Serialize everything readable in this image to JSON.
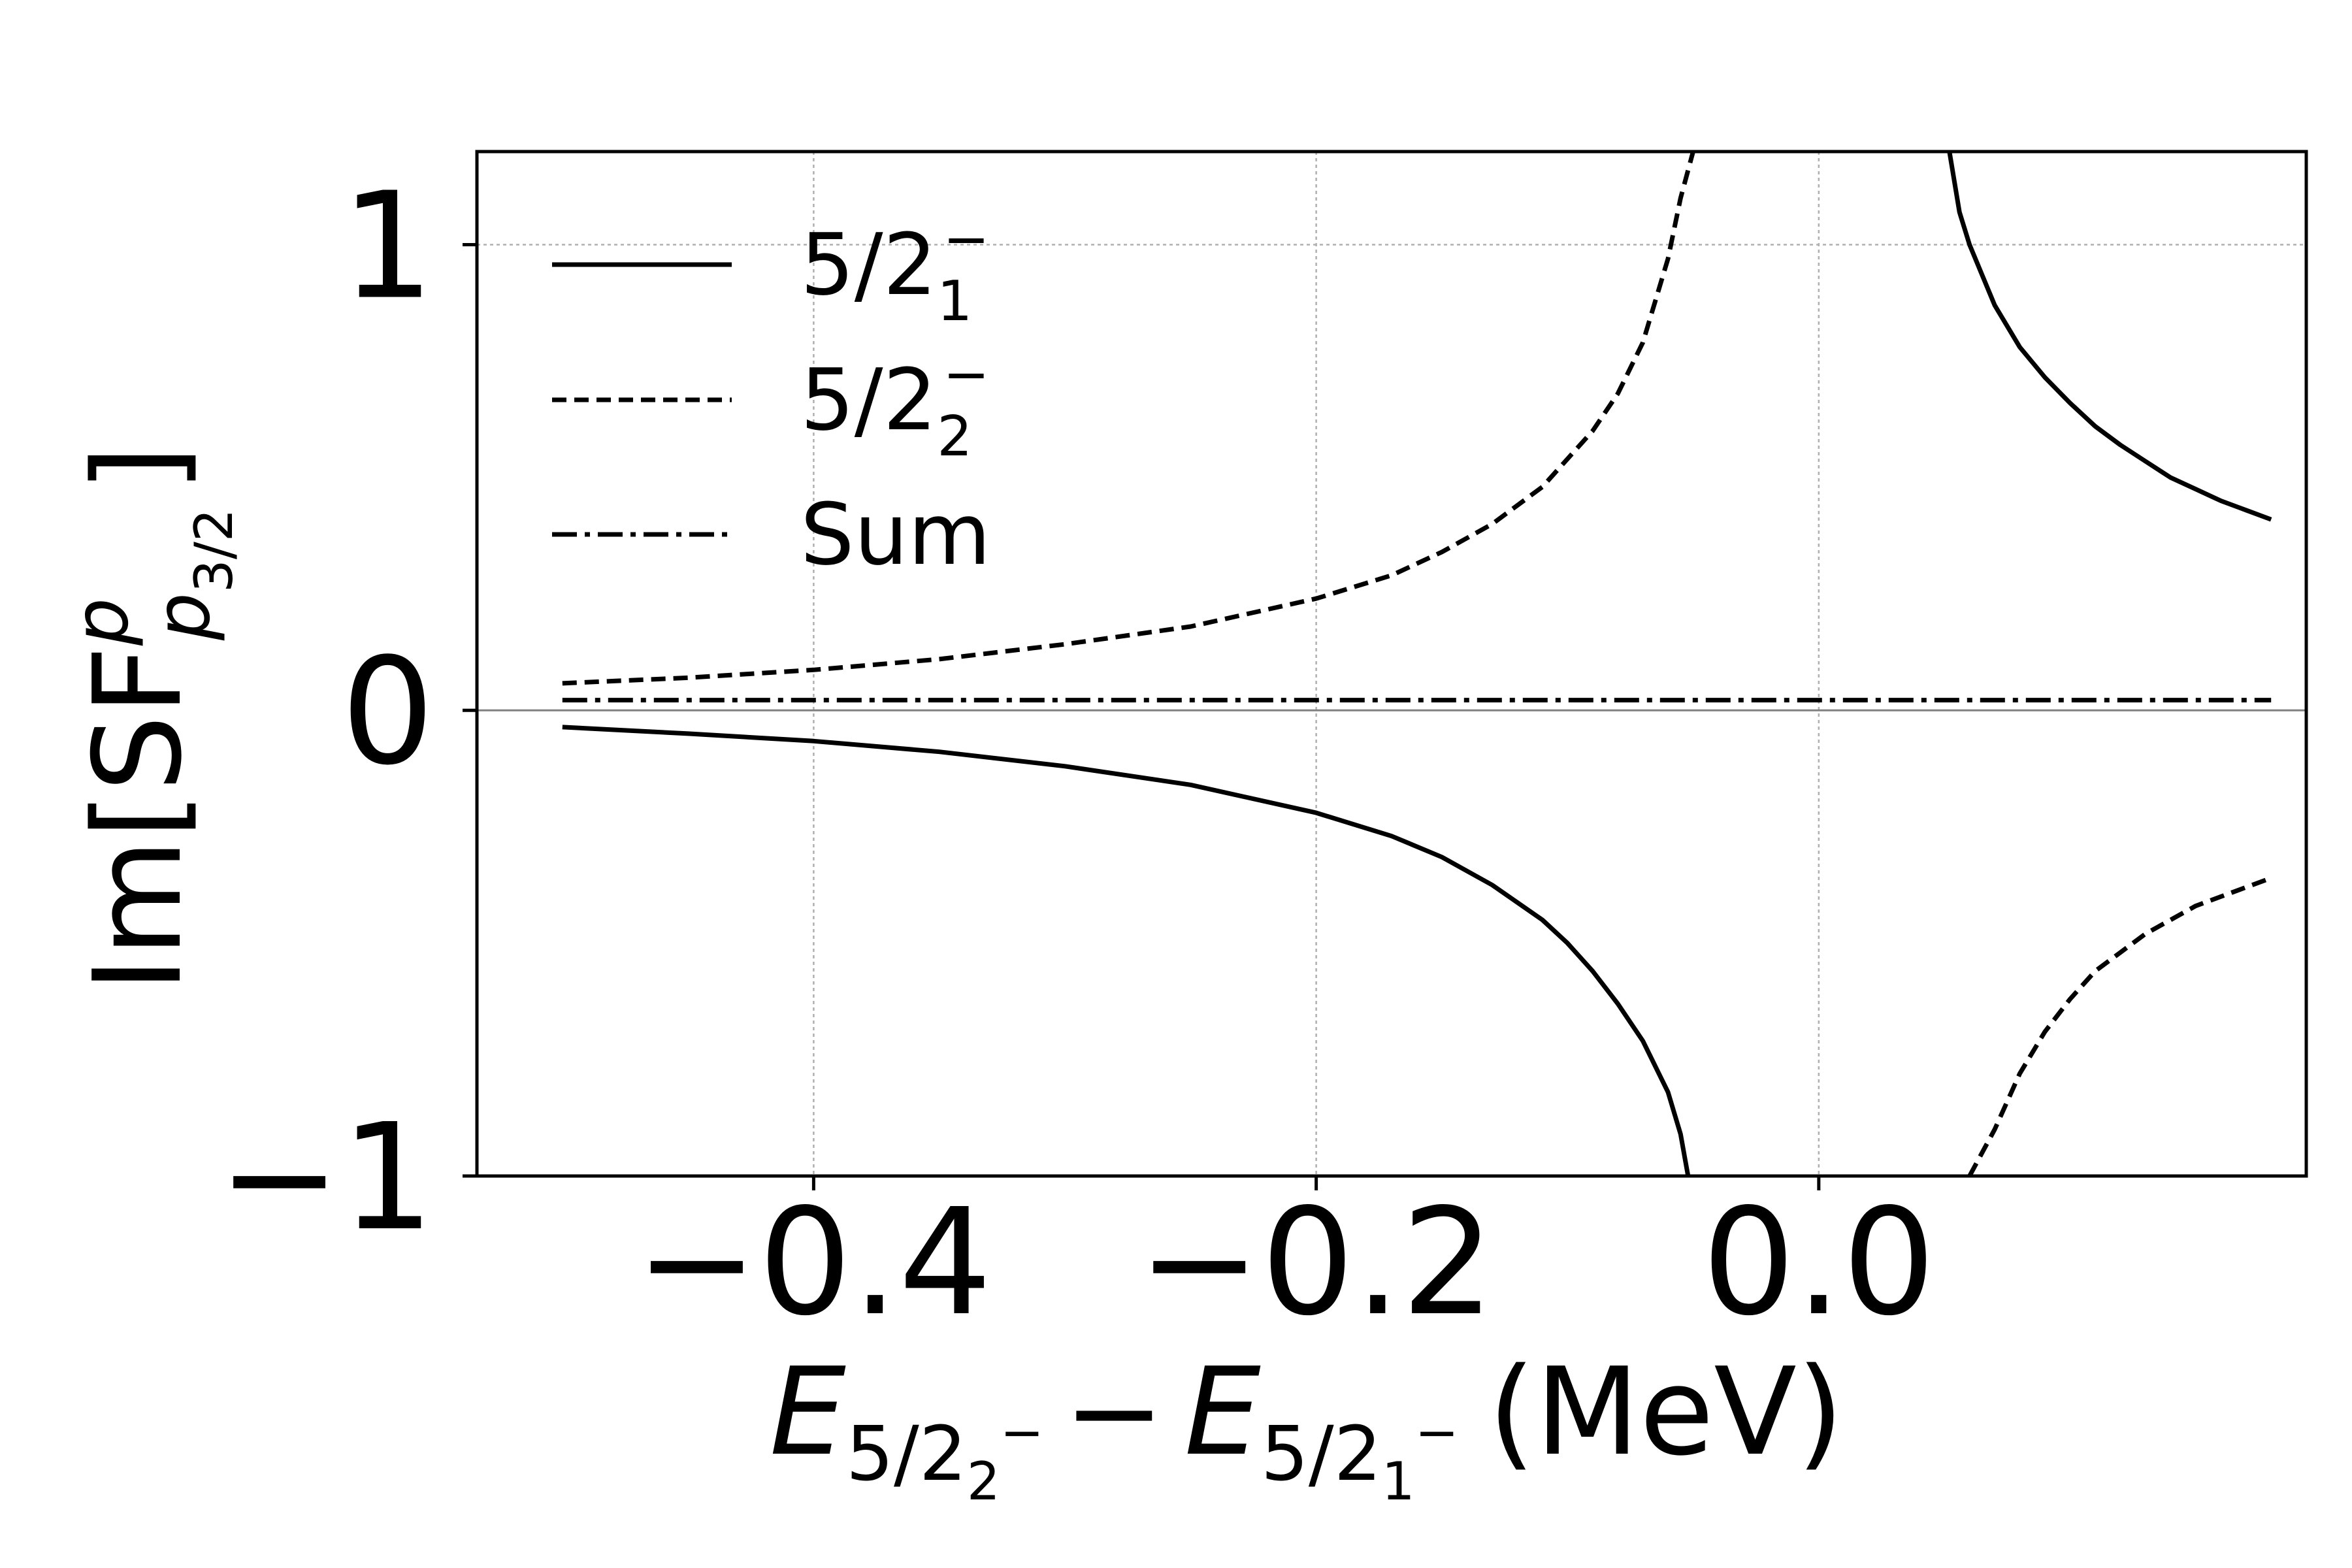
{
  "chart_data": {
    "type": "line",
    "xlabel": {
      "E": "E",
      "sub1_main": "5/2",
      "sub1_sub": "2",
      "sub1_sup": "−",
      "minus": "−",
      "E2": "E",
      "sub2_main": "5/2",
      "sub2_sub": "1",
      "sub2_sup": "−",
      "unit": "(MeV)"
    },
    "ylabel": {
      "pre": "Im[SF",
      "sup": "p",
      "sub_main": "p",
      "sub_sub": "3/2",
      "post": "]"
    },
    "xlim": [
      -0.534,
      0.194
    ],
    "ylim": [
      -1.0,
      1.2
    ],
    "x_ticks": [
      {
        "value": -0.4,
        "label": "−0.4"
      },
      {
        "value": -0.2,
        "label": "−0.2"
      },
      {
        "value": 0.0,
        "label": "0.0"
      }
    ],
    "y_ticks": [
      {
        "value": -1,
        "label": "−1"
      },
      {
        "value": 0,
        "label": "0"
      },
      {
        "value": 1,
        "label": "1"
      }
    ],
    "grid": true,
    "zero_line": true,
    "legend": {
      "position": "upper-left",
      "entries": [
        {
          "main": "5/2",
          "sub": "1",
          "sup": "−",
          "style": "solid"
        },
        {
          "main": "5/2",
          "sub": "2",
          "sup": "−",
          "style": "dashed"
        },
        {
          "main": "Sum",
          "sub": "",
          "sup": "",
          "style": "dashdot"
        }
      ]
    },
    "series": [
      {
        "style": "solid",
        "segments": [
          [
            [
              -0.5,
              -0.036
            ],
            [
              -0.45,
              -0.05
            ],
            [
              -0.4,
              -0.066
            ],
            [
              -0.35,
              -0.089
            ],
            [
              -0.3,
              -0.12
            ],
            [
              -0.25,
              -0.16
            ],
            [
              -0.2,
              -0.22
            ],
            [
              -0.17,
              -0.27
            ],
            [
              -0.15,
              -0.315
            ],
            [
              -0.13,
              -0.375
            ],
            [
              -0.11,
              -0.45
            ],
            [
              -0.1,
              -0.5
            ],
            [
              -0.09,
              -0.56
            ],
            [
              -0.08,
              -0.63
            ],
            [
              -0.07,
              -0.71
            ],
            [
              -0.06,
              -0.82
            ],
            [
              -0.055,
              -0.91
            ],
            [
              -0.052,
              -1.0
            ]
          ],
          [
            [
              0.052,
              1.2
            ],
            [
              0.056,
              1.07
            ],
            [
              0.06,
              1.0
            ],
            [
              0.07,
              0.87
            ],
            [
              0.08,
              0.78
            ],
            [
              0.09,
              0.715
            ],
            [
              0.1,
              0.66
            ],
            [
              0.11,
              0.61
            ],
            [
              0.12,
              0.57
            ],
            [
              0.13,
              0.535
            ],
            [
              0.14,
              0.5
            ],
            [
              0.15,
              0.475
            ],
            [
              0.16,
              0.45
            ],
            [
              0.17,
              0.43
            ],
            [
              0.18,
              0.41
            ]
          ]
        ]
      },
      {
        "style": "dashed",
        "segments": [
          [
            [
              -0.5,
              0.058
            ],
            [
              -0.45,
              0.07
            ],
            [
              -0.4,
              0.087
            ],
            [
              -0.35,
              0.11
            ],
            [
              -0.3,
              0.142
            ],
            [
              -0.25,
              0.18
            ],
            [
              -0.2,
              0.24
            ],
            [
              -0.17,
              0.29
            ],
            [
              -0.15,
              0.34
            ],
            [
              -0.13,
              0.4
            ],
            [
              -0.11,
              0.48
            ],
            [
              -0.1,
              0.54
            ],
            [
              -0.09,
              0.6
            ],
            [
              -0.08,
              0.68
            ],
            [
              -0.07,
              0.79
            ],
            [
              -0.06,
              0.97
            ],
            [
              -0.055,
              1.1
            ],
            [
              -0.05,
              1.2
            ]
          ],
          [
            [
              0.06,
              -1.0
            ],
            [
              0.07,
              -0.9
            ],
            [
              0.08,
              -0.78
            ],
            [
              0.09,
              -0.69
            ],
            [
              0.1,
              -0.62
            ],
            [
              0.11,
              -0.56
            ],
            [
              0.12,
              -0.52
            ],
            [
              0.13,
              -0.48
            ],
            [
              0.14,
              -0.45
            ],
            [
              0.15,
              -0.42
            ],
            [
              0.16,
              -0.4
            ],
            [
              0.17,
              -0.38
            ],
            [
              0.18,
              -0.36
            ]
          ]
        ]
      },
      {
        "style": "dashdot",
        "segments": [
          [
            [
              -0.5,
              0.022
            ],
            [
              -0.3,
              0.022
            ],
            [
              -0.1,
              0.022
            ],
            [
              0.1,
              0.022
            ],
            [
              0.18,
              0.022
            ]
          ]
        ]
      }
    ]
  }
}
